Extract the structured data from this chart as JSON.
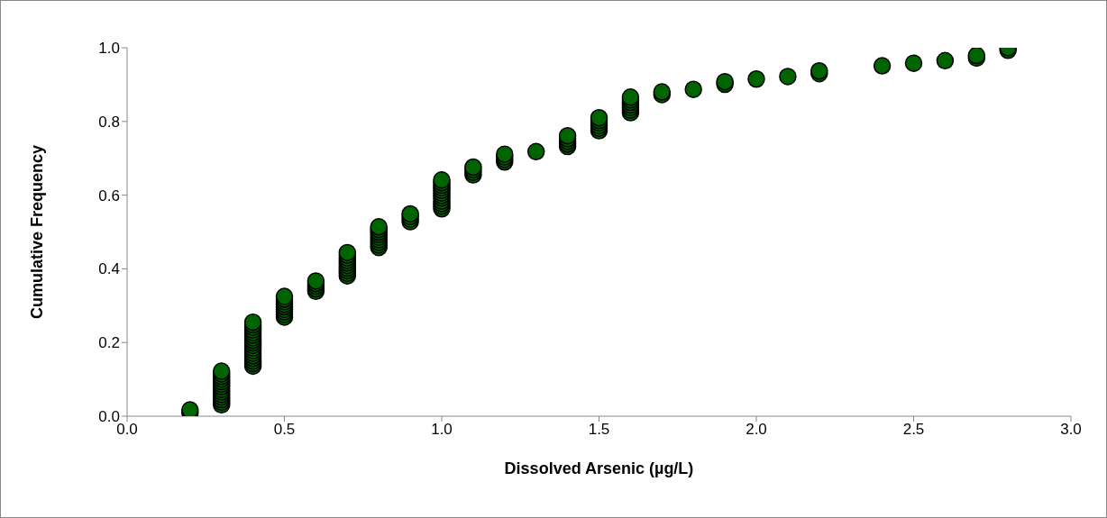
{
  "chart_data": {
    "type": "scatter",
    "xlabel": "Dissolved Arsenic (µg/L)",
    "ylabel": "Cumulative Frequency",
    "x": [
      0.2,
      0.2,
      0.3,
      0.3,
      0.3,
      0.3,
      0.3,
      0.3,
      0.3,
      0.3,
      0.3,
      0.3,
      0.3,
      0.3,
      0.3,
      0.3,
      0.4,
      0.4,
      0.4,
      0.4,
      0.4,
      0.4,
      0.4,
      0.4,
      0.4,
      0.4,
      0.4,
      0.4,
      0.4,
      0.4,
      0.4,
      0.4,
      0.4,
      0.4,
      0.5,
      0.5,
      0.5,
      0.5,
      0.5,
      0.5,
      0.5,
      0.5,
      0.5,
      0.6,
      0.6,
      0.6,
      0.6,
      0.6,
      0.7,
      0.7,
      0.7,
      0.7,
      0.7,
      0.7,
      0.7,
      0.7,
      0.7,
      0.7,
      0.8,
      0.8,
      0.8,
      0.8,
      0.8,
      0.8,
      0.8,
      0.8,
      0.8,
      0.9,
      0.9,
      0.9,
      0.9,
      1.0,
      1.0,
      1.0,
      1.0,
      1.0,
      1.0,
      1.0,
      1.0,
      1.0,
      1.0,
      1.0,
      1.0,
      1.1,
      1.1,
      1.1,
      1.1,
      1.2,
      1.2,
      1.2,
      1.2,
      1.3,
      1.4,
      1.4,
      1.4,
      1.4,
      1.4,
      1.5,
      1.5,
      1.5,
      1.5,
      1.5,
      1.5,
      1.6,
      1.6,
      1.6,
      1.6,
      1.6,
      1.6,
      1.6,
      1.7,
      1.7,
      1.8,
      1.9,
      1.9,
      2.0,
      2.1,
      2.2,
      2.2,
      2.4,
      2.5,
      2.6,
      2.7,
      2.7,
      2.8,
      2.8
    ],
    "values": [
      0.01,
      0.017,
      0.031,
      0.038,
      0.045,
      0.052,
      0.059,
      0.066,
      0.073,
      0.08,
      0.087,
      0.094,
      0.101,
      0.108,
      0.115,
      0.122,
      0.136,
      0.143,
      0.15,
      0.157,
      0.164,
      0.171,
      0.178,
      0.185,
      0.192,
      0.199,
      0.206,
      0.213,
      0.22,
      0.227,
      0.234,
      0.241,
      0.248,
      0.255,
      0.269,
      0.276,
      0.283,
      0.29,
      0.297,
      0.304,
      0.311,
      0.318,
      0.325,
      0.339,
      0.346,
      0.353,
      0.36,
      0.367,
      0.381,
      0.388,
      0.395,
      0.402,
      0.409,
      0.416,
      0.423,
      0.43,
      0.437,
      0.444,
      0.458,
      0.465,
      0.472,
      0.479,
      0.486,
      0.493,
      0.5,
      0.507,
      0.514,
      0.528,
      0.535,
      0.542,
      0.549,
      0.563,
      0.57,
      0.577,
      0.584,
      0.592,
      0.599,
      0.606,
      0.613,
      0.62,
      0.627,
      0.634,
      0.641,
      0.655,
      0.662,
      0.669,
      0.676,
      0.69,
      0.697,
      0.704,
      0.711,
      0.718,
      0.732,
      0.739,
      0.746,
      0.753,
      0.761,
      0.775,
      0.782,
      0.789,
      0.796,
      0.803,
      0.81,
      0.824,
      0.831,
      0.838,
      0.845,
      0.852,
      0.859,
      0.866,
      0.873,
      0.88,
      0.887,
      0.901,
      0.908,
      0.915,
      0.922,
      0.93,
      0.937,
      0.951,
      0.958,
      0.965,
      0.972,
      0.979,
      0.993,
      1.0
    ],
    "color": "#006400",
    "marker": "circle",
    "xlim": [
      0,
      3
    ],
    "xticks": [
      {
        "value": 0,
        "label": "0.0"
      },
      0.5,
      {
        "value": 1,
        "label": "1.0"
      },
      1.5,
      {
        "value": 2,
        "label": "2.0"
      },
      2.5,
      {
        "value": 3,
        "label": "3.0"
      }
    ],
    "ylim": [
      0,
      1
    ],
    "yticks": [
      {
        "value": 0,
        "label": "0.0"
      },
      0.2,
      0.4,
      0.6,
      0.8,
      {
        "value": 1,
        "label": "1.0"
      }
    ],
    "grid": false,
    "legend": false
  }
}
